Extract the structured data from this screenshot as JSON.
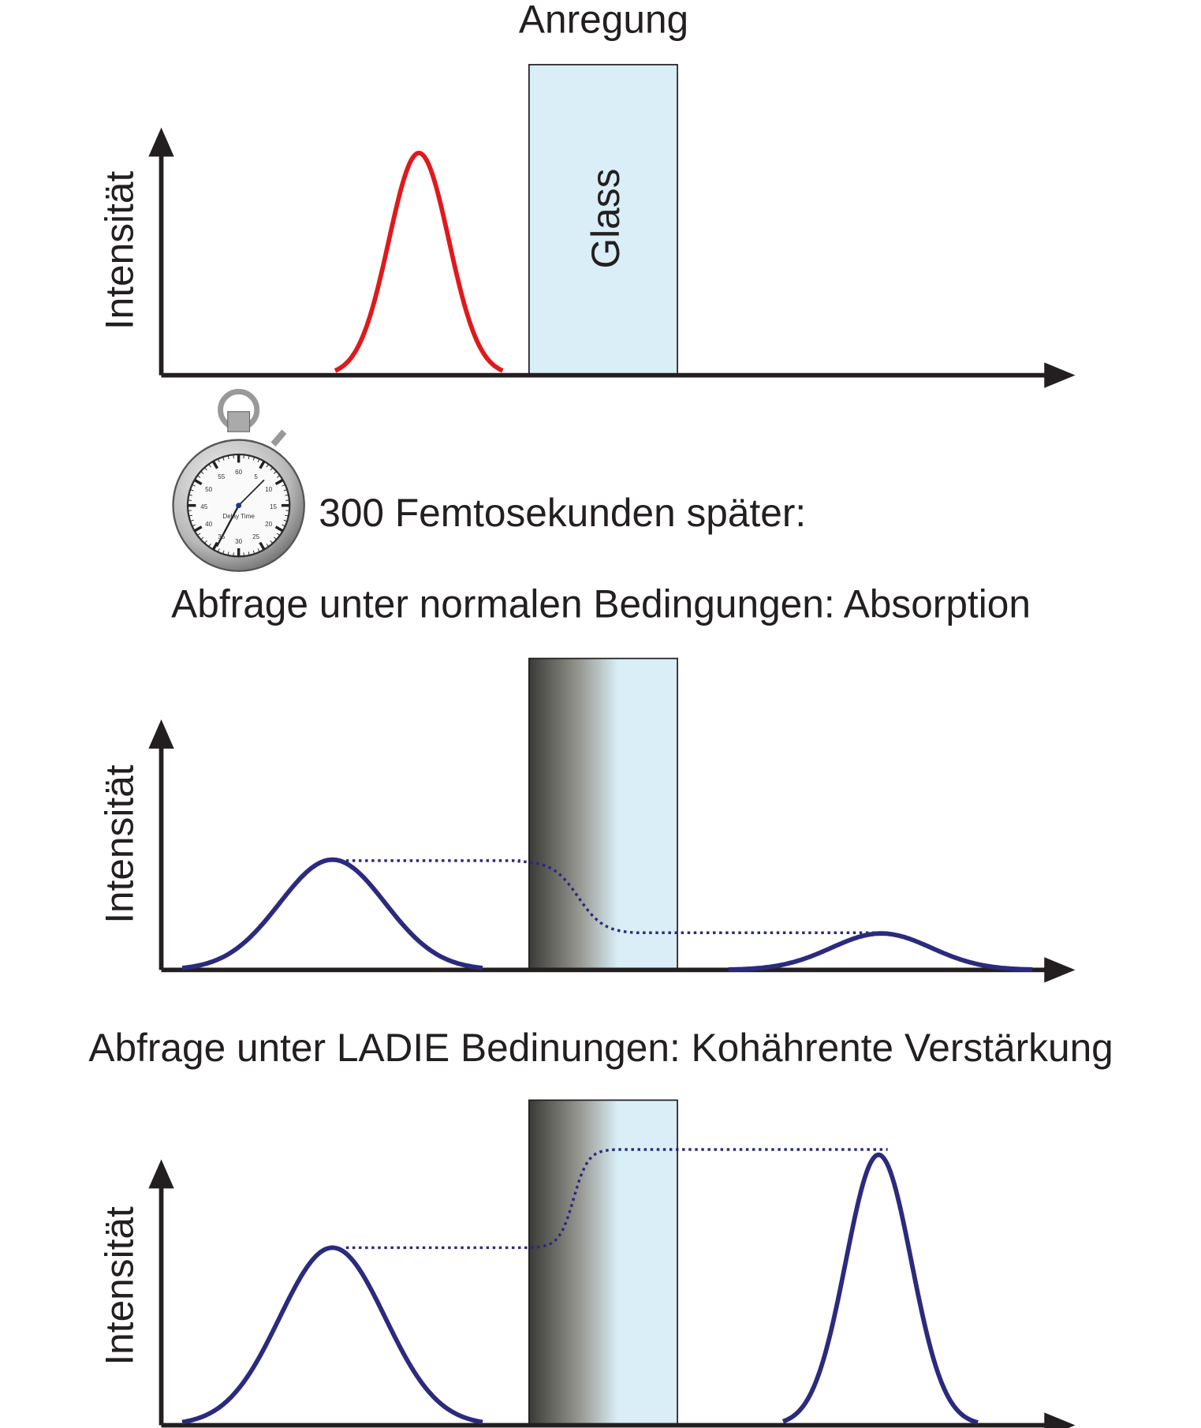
{
  "top": {
    "title": "Anregung",
    "glass": "Glass",
    "y_label": "Intensität"
  },
  "stopwatch": {
    "label": "Delay Time",
    "dial": [
      "60",
      "5",
      "10",
      "15",
      "20",
      "25",
      "30",
      "35",
      "40",
      "45",
      "50",
      "55"
    ]
  },
  "delay_text": "300 Femtosekunden später:",
  "middle": {
    "title": "Abfrage unter normalen Bedingungen: Absorption",
    "y_label": "Intensität"
  },
  "bottom": {
    "title": "Abfrage unter LADIE Bedinungen: Kohährente Verstärkung",
    "y_label": "Intensität"
  }
}
